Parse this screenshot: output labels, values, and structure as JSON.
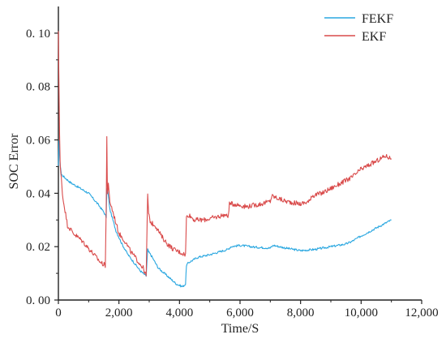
{
  "chart_data": {
    "type": "line",
    "title": "",
    "xlabel": "Time/S",
    "ylabel": "SOC Error",
    "xlim": [
      0,
      12000
    ],
    "ylim": [
      0.0,
      0.11
    ],
    "x_ticks": [
      "0",
      "2,000",
      "4,000",
      "6,000",
      "8,000",
      "10,000",
      "12,000"
    ],
    "x_tick_values": [
      0,
      2000,
      4000,
      6000,
      8000,
      10000,
      12000
    ],
    "y_ticks": [
      "0. 00",
      "0. 02",
      "0. 04",
      "0. 06",
      "0. 08",
      "0. 10"
    ],
    "y_tick_values": [
      0.0,
      0.02,
      0.04,
      0.06,
      0.08,
      0.1
    ],
    "grid": false,
    "legend_position": "top-right",
    "series": [
      {
        "name": "FEKF",
        "color": "#2aa7e0",
        "x": [
          0,
          20,
          50,
          100,
          200,
          400,
          700,
          1000,
          1300,
          1500,
          1580,
          1600,
          1630,
          1700,
          1900,
          2100,
          2300,
          2500,
          2700,
          2900,
          2950,
          2980,
          3050,
          3300,
          3600,
          3900,
          4100,
          4200,
          4230,
          4300,
          4600,
          5000,
          5300,
          5600,
          5700,
          6000,
          6500,
          7000,
          7100,
          7500,
          8000,
          8500,
          9000,
          9500,
          9700,
          10000,
          10500,
          11000
        ],
        "y": [
          0.05,
          0.06,
          0.052,
          0.047,
          0.046,
          0.044,
          0.042,
          0.04,
          0.036,
          0.033,
          0.031,
          0.042,
          0.041,
          0.034,
          0.026,
          0.021,
          0.017,
          0.014,
          0.011,
          0.009,
          0.019,
          0.018,
          0.017,
          0.012,
          0.009,
          0.006,
          0.005,
          0.006,
          0.013,
          0.014,
          0.016,
          0.017,
          0.018,
          0.019,
          0.02,
          0.0205,
          0.0198,
          0.0195,
          0.0205,
          0.0195,
          0.0185,
          0.019,
          0.02,
          0.021,
          0.022,
          0.024,
          0.027,
          0.03
        ]
      },
      {
        "name": "EKF",
        "color": "#d94a4a",
        "x": [
          0,
          20,
          40,
          60,
          100,
          150,
          200,
          300,
          500,
          800,
          1100,
          1400,
          1550,
          1580,
          1600,
          1620,
          1650,
          1700,
          1800,
          2000,
          2200,
          2400,
          2600,
          2800,
          2900,
          2950,
          2980,
          3050,
          3200,
          3400,
          3600,
          3800,
          4000,
          4200,
          4230,
          4300,
          4500,
          4800,
          5200,
          5500,
          5600,
          5650,
          5800,
          6200,
          6700,
          7000,
          7050,
          7500,
          8000,
          8300,
          8350,
          8700,
          9200,
          9700,
          10000,
          10500,
          10800,
          11000
        ],
        "y": [
          0.1,
          0.08,
          0.062,
          0.05,
          0.045,
          0.038,
          0.035,
          0.028,
          0.025,
          0.022,
          0.018,
          0.014,
          0.013,
          0.035,
          0.061,
          0.04,
          0.043,
          0.037,
          0.033,
          0.025,
          0.022,
          0.018,
          0.015,
          0.012,
          0.009,
          0.04,
          0.032,
          0.029,
          0.028,
          0.024,
          0.021,
          0.019,
          0.018,
          0.017,
          0.031,
          0.032,
          0.03,
          0.03,
          0.031,
          0.032,
          0.031,
          0.036,
          0.036,
          0.035,
          0.036,
          0.037,
          0.039,
          0.037,
          0.036,
          0.037,
          0.039,
          0.04,
          0.043,
          0.046,
          0.049,
          0.052,
          0.054,
          0.053
        ]
      }
    ]
  }
}
